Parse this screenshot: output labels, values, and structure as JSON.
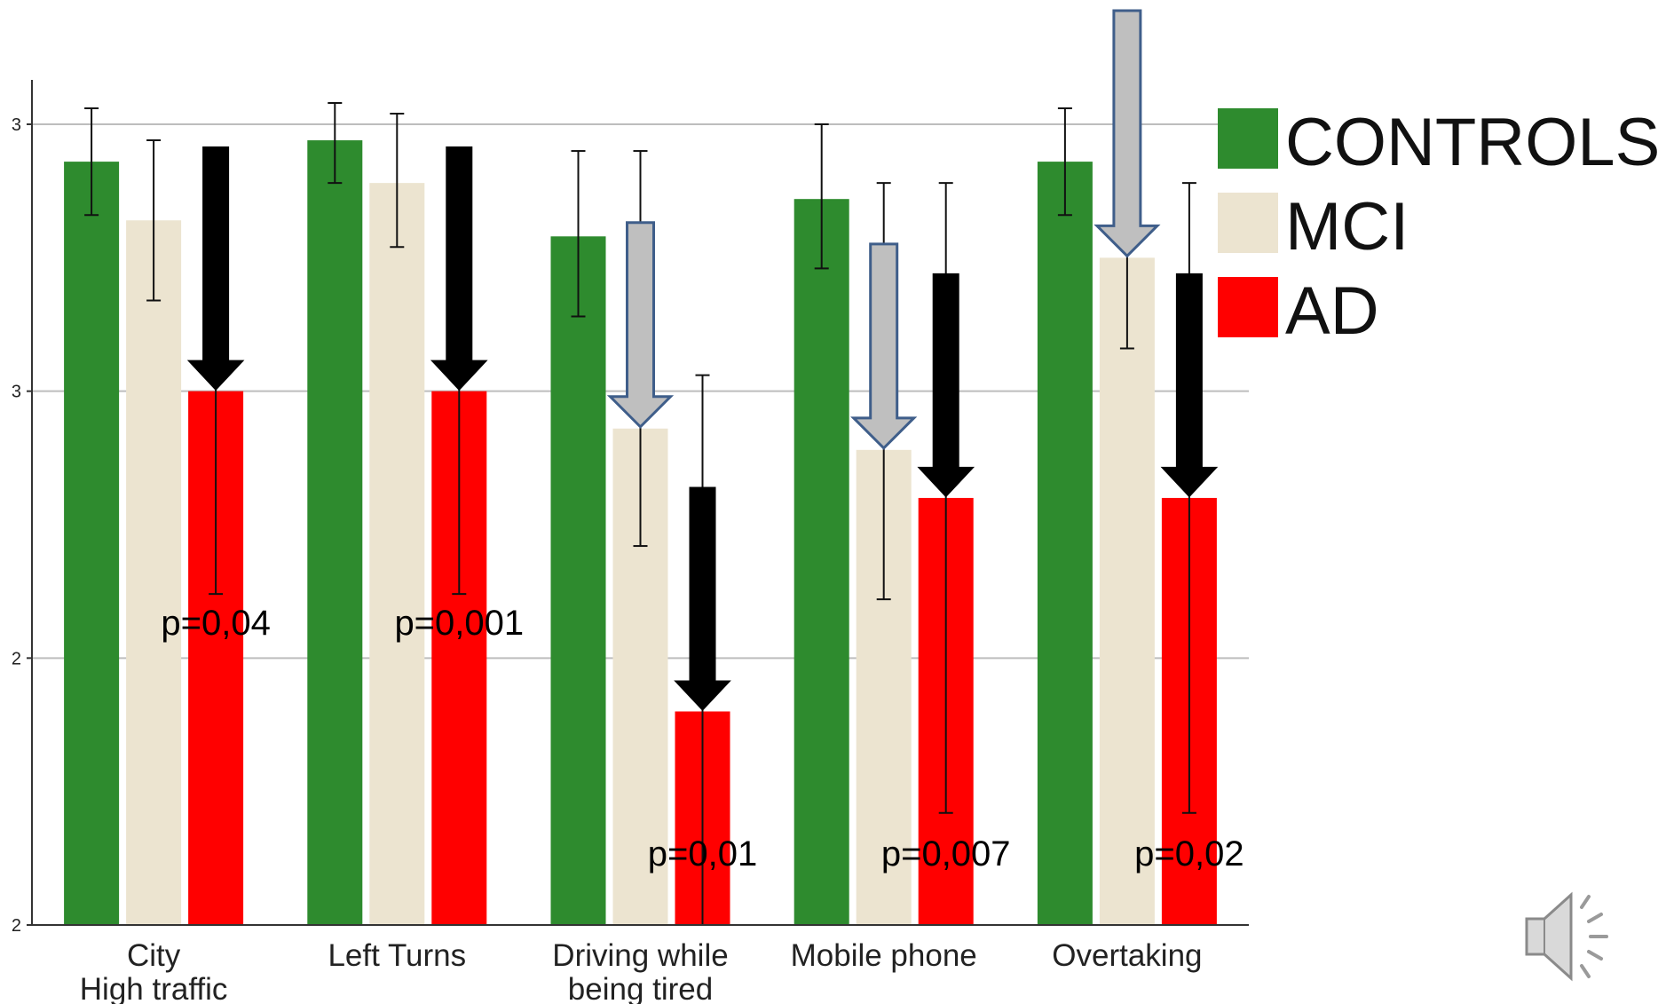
{
  "chart_data": {
    "type": "bar",
    "categories": [
      [
        "City",
        "High traffic"
      ],
      [
        "Left Turns"
      ],
      [
        "Driving while",
        "being tired"
      ],
      [
        "Mobile phone"
      ],
      [
        "Overtaking"
      ]
    ],
    "y_tick_labels": [
      "2",
      "2",
      "3",
      "3"
    ],
    "y_tick_values": [
      1.5,
      2.0,
      2.5,
      3.0
    ],
    "ylim": [
      1.5,
      3.03
    ],
    "grid": "horizontal",
    "legend_position": "right",
    "series": [
      {
        "name": "CONTROLS",
        "color": "#2e8b2e",
        "values": [
          2.93,
          2.97,
          2.79,
          2.86,
          2.93
        ],
        "err_low": [
          2.83,
          2.89,
          2.64,
          2.73,
          2.83
        ],
        "err_high": [
          3.03,
          3.04,
          2.95,
          3.0,
          3.03
        ]
      },
      {
        "name": "MCI",
        "color": "#ece4d0",
        "values": [
          2.82,
          2.89,
          2.43,
          2.39,
          2.75
        ],
        "err_low": [
          2.67,
          2.77,
          2.21,
          2.11,
          2.58
        ],
        "err_high": [
          2.97,
          3.02,
          2.95,
          2.89,
          3.02
        ]
      },
      {
        "name": "AD",
        "color": "#ff0000",
        "values": [
          2.5,
          2.5,
          1.9,
          2.3,
          2.3
        ],
        "err_low": [
          2.12,
          2.12,
          1.5,
          1.71,
          1.71
        ],
        "err_high": [
          2.94,
          2.94,
          2.53,
          2.89,
          2.89
        ]
      }
    ],
    "annotations": [
      {
        "text": "p=0,04",
        "category": 0
      },
      {
        "text": "p=0,001",
        "category": 1
      },
      {
        "text": "p=0,01",
        "category": 2
      },
      {
        "text": "p=0,007",
        "category": 3
      },
      {
        "text": "p=0,02",
        "category": 4
      }
    ],
    "arrows": [
      {
        "category": 0,
        "series": "AD",
        "style": "black"
      },
      {
        "category": 1,
        "series": "AD",
        "style": "black"
      },
      {
        "category": 2,
        "series": "MCI",
        "style": "grey"
      },
      {
        "category": 2,
        "series": "AD",
        "style": "black"
      },
      {
        "category": 3,
        "series": "MCI",
        "style": "grey"
      },
      {
        "category": 3,
        "series": "AD",
        "style": "black"
      },
      {
        "category": 4,
        "series": "MCI",
        "style": "grey"
      },
      {
        "category": 4,
        "series": "AD",
        "style": "black"
      }
    ]
  },
  "speaker_icon": "speaker-icon"
}
